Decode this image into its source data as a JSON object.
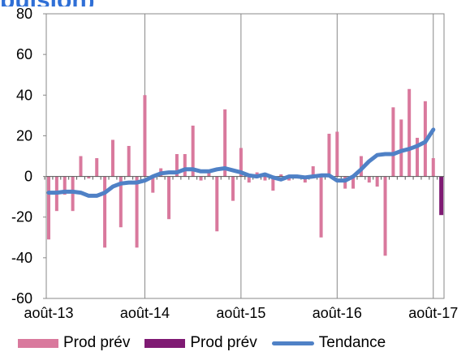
{
  "title_fragment": "pulsion)",
  "chart_data": {
    "type": "bar",
    "ylim": [
      -60,
      80
    ],
    "yticks": [
      "80",
      "60",
      "40",
      "20",
      "0",
      "-20",
      "-40",
      "-60"
    ],
    "ytick_values": [
      80,
      60,
      40,
      20,
      0,
      -20,
      -40,
      -60
    ],
    "xtick_labels": [
      "août-13",
      "août-14",
      "août-15",
      "août-16",
      "août-17"
    ],
    "xtick_index": [
      0,
      12,
      24,
      36,
      48
    ],
    "grid": "vertical",
    "legend_position": "bottom",
    "series": [
      {
        "name": "Prod prév",
        "kind": "bar",
        "color": "#d9799d",
        "values": [
          -31,
          -17,
          -9,
          -17,
          10,
          -1,
          9,
          -35,
          18,
          -25,
          15,
          -35,
          40,
          -8,
          4,
          -21,
          11,
          11,
          25,
          -2,
          2,
          -27,
          33,
          -12,
          14,
          -3,
          2,
          -2,
          -7,
          1,
          -2,
          -1,
          -3,
          5,
          -30,
          21,
          22,
          -6,
          -6,
          10,
          -3,
          -5,
          -39,
          34,
          28,
          43,
          19,
          37,
          9
        ]
      },
      {
        "name": "Prod prév",
        "kind": "bar",
        "color": "#7f1a73",
        "values": [
          null,
          null,
          null,
          null,
          null,
          null,
          null,
          null,
          null,
          null,
          null,
          null,
          null,
          null,
          null,
          null,
          null,
          null,
          null,
          null,
          null,
          null,
          null,
          null,
          null,
          null,
          null,
          null,
          null,
          null,
          null,
          null,
          null,
          null,
          null,
          null,
          null,
          null,
          null,
          null,
          null,
          null,
          null,
          null,
          null,
          null,
          null,
          null,
          null,
          -19
        ]
      },
      {
        "name": "Tendance",
        "kind": "line",
        "color": "#4f81c6",
        "values": [
          -8,
          -8,
          -7.5,
          -7.5,
          -8,
          -9.5,
          -9.5,
          -8,
          -5,
          -3.5,
          -3,
          -3,
          -2,
          0,
          1.5,
          2,
          2,
          3.5,
          3.5,
          2.5,
          2.5,
          3.5,
          4,
          3,
          2,
          0.5,
          0,
          1,
          -0.5,
          -1.5,
          0,
          0,
          -0.5,
          0,
          0.5,
          0.5,
          -2,
          -2,
          0,
          3.5,
          7.5,
          10.5,
          11,
          11,
          12.5,
          13.5,
          15,
          17,
          23
        ]
      }
    ]
  }
}
